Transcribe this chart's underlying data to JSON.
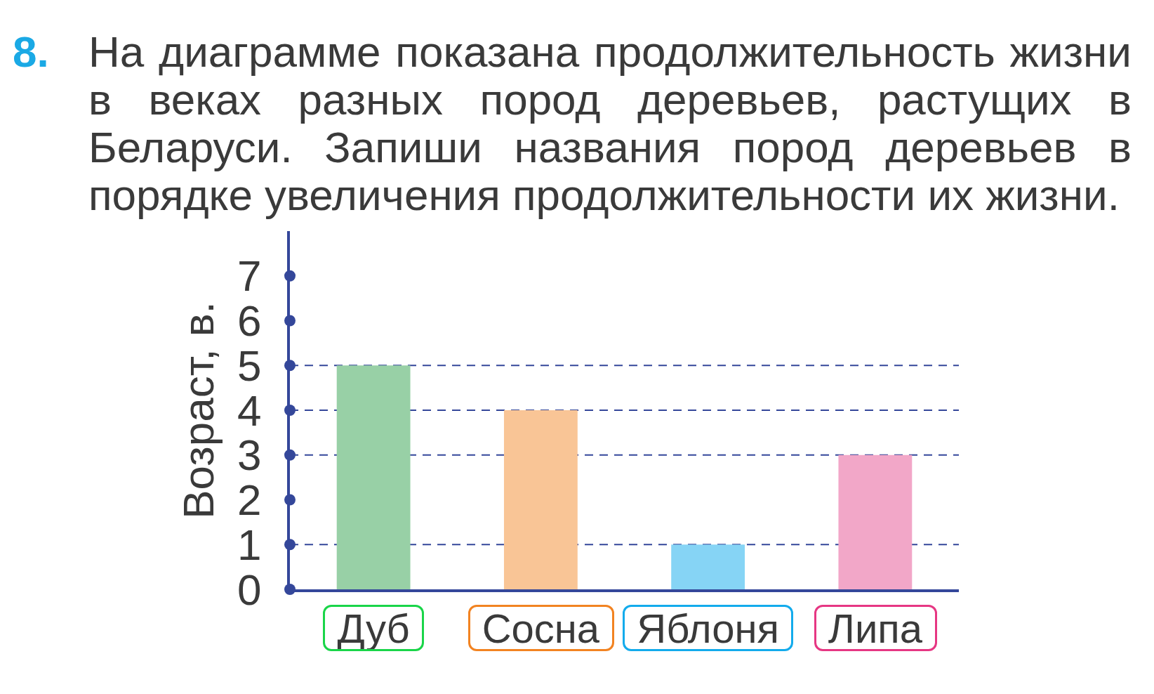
{
  "chart_data": {
    "type": "bar",
    "title": "8. На диаграмме показана продолжительность жизни в веках разных пород деревьев, растущих в Беларуси. Запиши названия пород деревьев в порядке увеличения продолжительности их жизни.",
    "ylabel": "Возраст, в.",
    "categories": [
      "Дуб",
      "Сосна",
      "Яблоня",
      "Липа"
    ],
    "values": [
      5,
      4,
      1,
      3
    ],
    "colors": [
      "#98d0a6",
      "#f9c596",
      "#86d4f5",
      "#f2a7c8"
    ],
    "ylim": [
      0,
      8
    ],
    "yticks": [
      0,
      1,
      2,
      3,
      4,
      5,
      6,
      7
    ],
    "ref_lines": [
      {
        "axis": "y",
        "value": 5,
        "color": "#34479a",
        "line_style": "dashed"
      },
      {
        "axis": "y",
        "value": 4,
        "color": "#34479a",
        "line_style": "dashed"
      },
      {
        "axis": "y",
        "value": 3,
        "color": "#34479a",
        "line_style": "dashed"
      },
      {
        "axis": "y",
        "value": 1,
        "color": "#34479a",
        "line_style": "dashed"
      }
    ]
  }
}
